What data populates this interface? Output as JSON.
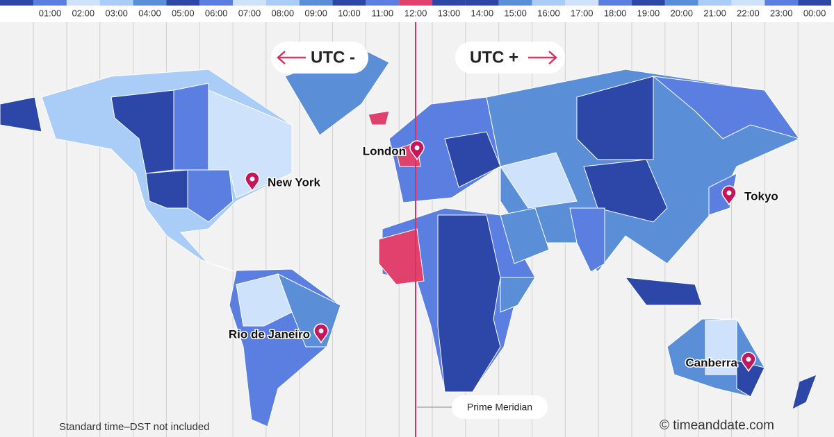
{
  "hours": [
    {
      "label": "01:00",
      "color": "#5b7fe0"
    },
    {
      "label": "02:00",
      "color": "#cfe2fb"
    },
    {
      "label": "03:00",
      "color": "#a9cdf7"
    },
    {
      "label": "04:00",
      "color": "#5a8fd8"
    },
    {
      "label": "05:00",
      "color": "#2c47a8"
    },
    {
      "label": "06:00",
      "color": "#5b7fe0"
    },
    {
      "label": "07:00",
      "color": "#cfe2fb"
    },
    {
      "label": "08:00",
      "color": "#a9cdf7"
    },
    {
      "label": "09:00",
      "color": "#5a8fd8"
    },
    {
      "label": "10:00",
      "color": "#2c47a8"
    },
    {
      "label": "11:00",
      "color": "#5b7fe0"
    },
    {
      "label": "12:00",
      "color": "#e0416d"
    },
    {
      "label": "13:00",
      "color": "#2c47a8"
    },
    {
      "label": "14:00",
      "color": "#2c47a8"
    },
    {
      "label": "15:00",
      "color": "#5a8fd8"
    },
    {
      "label": "16:00",
      "color": "#a9cdf7"
    },
    {
      "label": "17:00",
      "color": "#cfe2fb"
    },
    {
      "label": "18:00",
      "color": "#5b7fe0"
    },
    {
      "label": "19:00",
      "color": "#2c47a8"
    },
    {
      "label": "20:00",
      "color": "#5a8fd8"
    },
    {
      "label": "21:00",
      "color": "#a9cdf7"
    },
    {
      "label": "22:00",
      "color": "#cfe2fb"
    },
    {
      "label": "23:00",
      "color": "#5b7fe0"
    },
    {
      "label": "00:00",
      "color": "#2c47a8"
    }
  ],
  "header": {
    "utc_minus": "UTC -",
    "utc_plus": "UTC +"
  },
  "cities": [
    {
      "name": "London"
    },
    {
      "name": "New York"
    },
    {
      "name": "Tokyo"
    },
    {
      "name": "Rio de Janeiro"
    },
    {
      "name": "Canberra"
    }
  ],
  "prime_meridian": "Prime Meridian",
  "footnote": "Standard time–DST not included",
  "credit": "© timeanddate.com"
}
